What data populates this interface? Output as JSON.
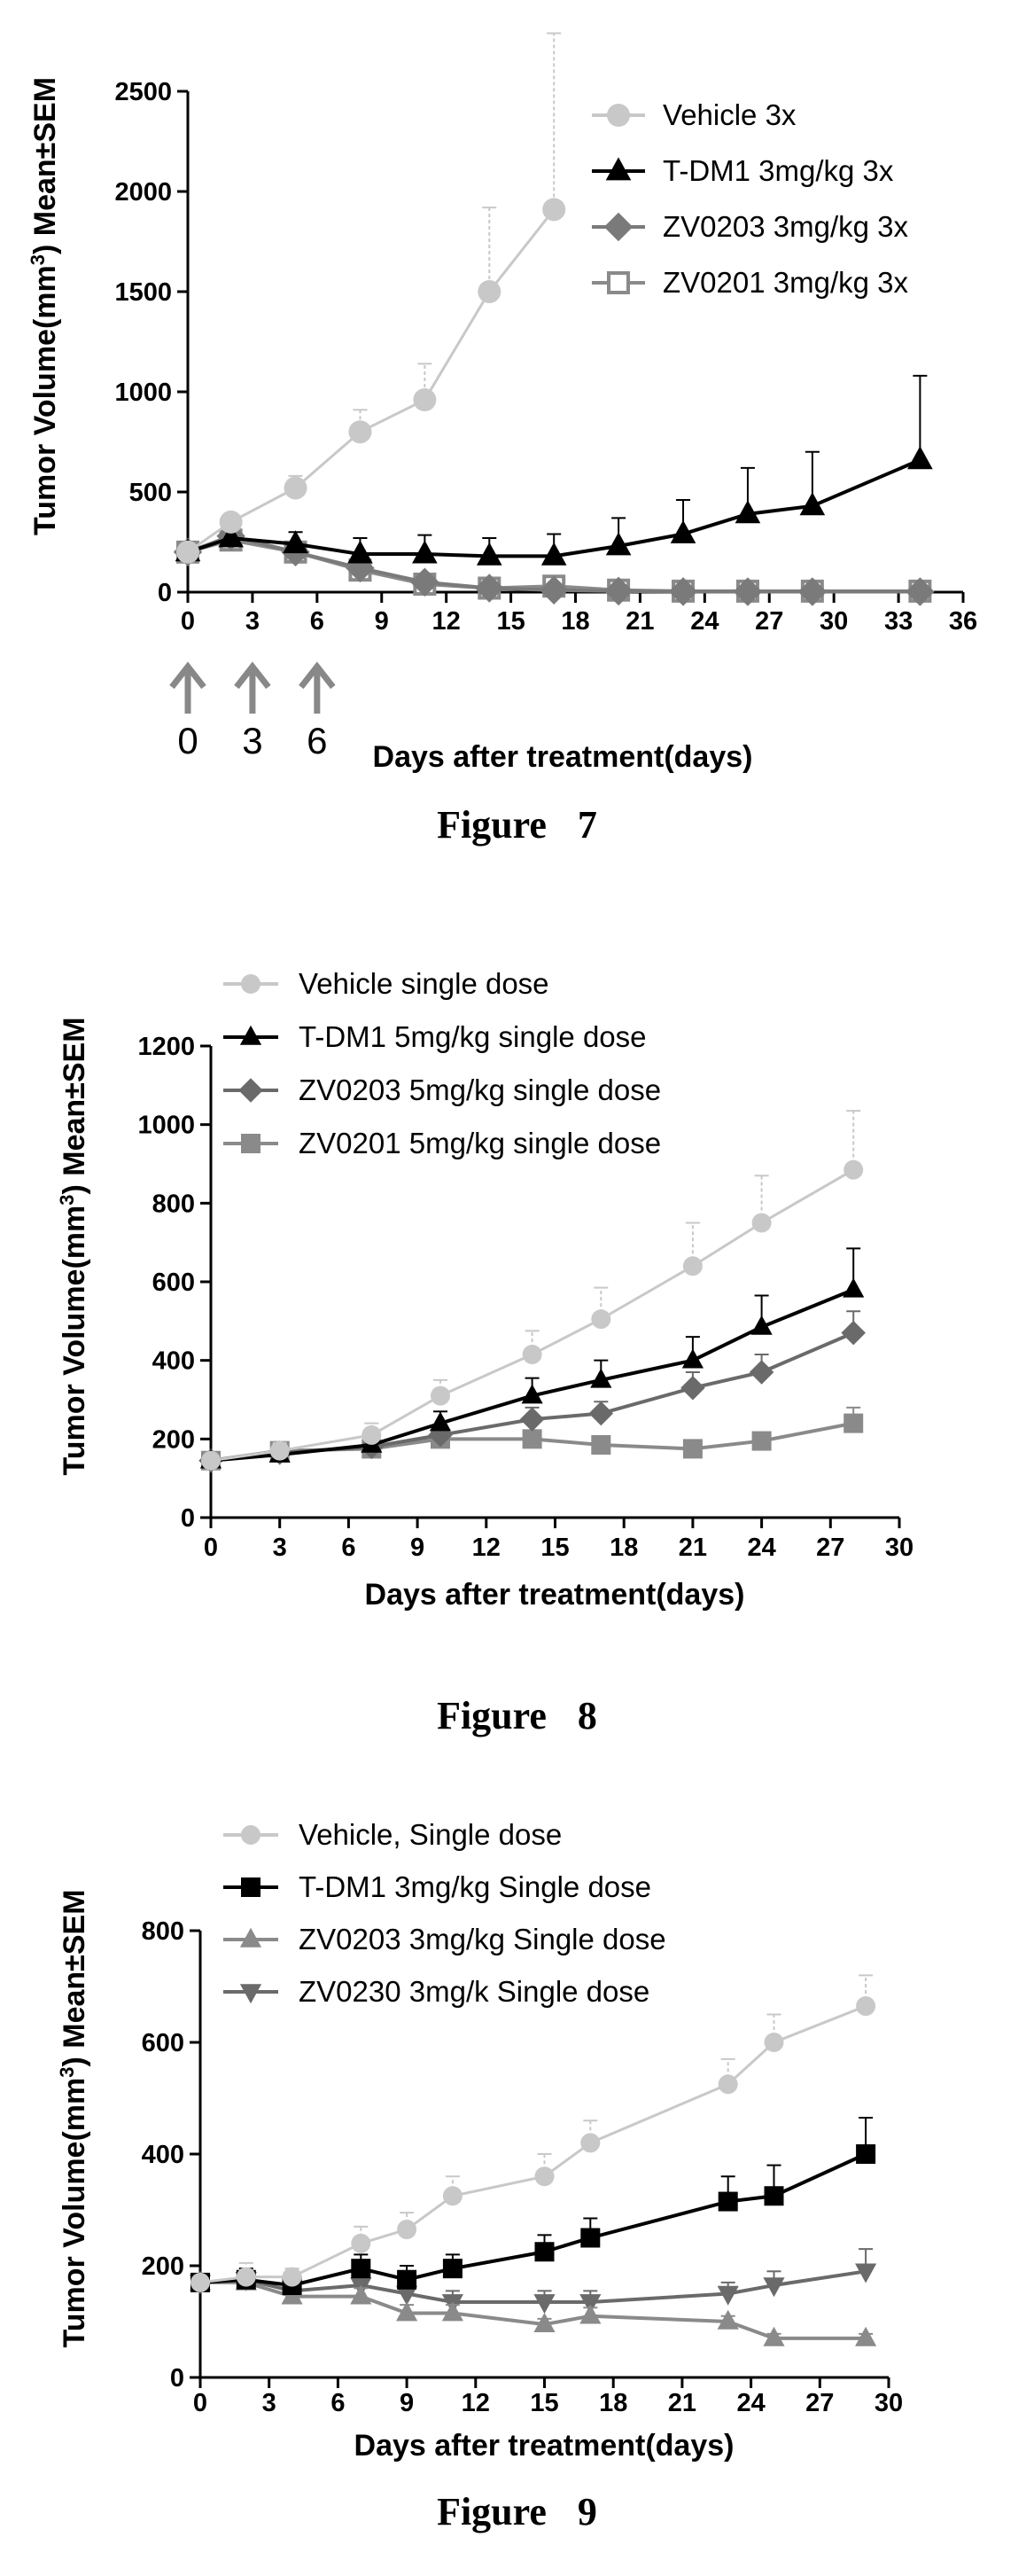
{
  "figures": [
    {
      "caption": "Figure 7",
      "chart_data": {
        "type": "line",
        "ylabel": "Tumor Volume(mm3) Mean±SEM",
        "xlabel": "Days after treatment(days)",
        "xlim": [
          0,
          36
        ],
        "ylim": [
          0,
          2500
        ],
        "xticks": [
          0,
          3,
          6,
          9,
          12,
          15,
          18,
          21,
          24,
          27,
          30,
          33,
          36
        ],
        "yticks": [
          0,
          500,
          1000,
          1500,
          2000,
          2500
        ],
        "legend": "top-right",
        "dose_days": [
          0,
          3,
          6
        ],
        "series": [
          {
            "name": "Vehicle 3x",
            "color": "#c8c8c8",
            "marker": "circle",
            "x": [
              0,
              2,
              5,
              8,
              11,
              14,
              17
            ],
            "y": [
              200,
              350,
              520,
              800,
              960,
              1500,
              1910
            ],
            "err": [
              0,
              40,
              60,
              110,
              180,
              420,
              880
            ]
          },
          {
            "name": "T-DM1 3mg/kg 3x",
            "color": "#000000",
            "marker": "triangle",
            "x": [
              0,
              2,
              5,
              8,
              11,
              14,
              17,
              20,
              23,
              26,
              29,
              34
            ],
            "y": [
              200,
              270,
              240,
              190,
              190,
              180,
              180,
              230,
              290,
              390,
              430,
              660
            ],
            "err": [
              0,
              50,
              60,
              80,
              95,
              90,
              110,
              140,
              170,
              230,
              270,
              420
            ]
          },
          {
            "name": "ZV0203 3mg/kg 3x",
            "color": "#7a7a7a",
            "marker": "diamond",
            "x": [
              0,
              2,
              5,
              8,
              11,
              14,
              17,
              20,
              23,
              26,
              29,
              34
            ],
            "y": [
              200,
              280,
              200,
              120,
              50,
              20,
              10,
              5,
              3,
              2,
              2,
              2
            ],
            "err": [
              0,
              30,
              30,
              20,
              15,
              10,
              5,
              3,
              0,
              0,
              0,
              0
            ]
          },
          {
            "name": "ZV0201 3mg/kg 3x",
            "color": "#8a8a8a",
            "marker": "square-open",
            "x": [
              0,
              2,
              5,
              8,
              11,
              14,
              17,
              20,
              23,
              26,
              29,
              34
            ],
            "y": [
              200,
              260,
              200,
              110,
              40,
              20,
              30,
              10,
              5,
              5,
              5,
              5
            ],
            "err": [
              0,
              30,
              30,
              20,
              15,
              10,
              10,
              5,
              0,
              0,
              0,
              0
            ]
          }
        ]
      }
    },
    {
      "caption": "Figure 8",
      "chart_data": {
        "type": "line",
        "ylabel": "Tumor Volume(mm3) Mean±SEM",
        "xlabel": "Days after treatment(days)",
        "xlim": [
          0,
          30
        ],
        "ylim": [
          0,
          1200
        ],
        "xticks": [
          0,
          3,
          6,
          9,
          12,
          15,
          18,
          21,
          24,
          27,
          30
        ],
        "yticks": [
          0,
          200,
          400,
          600,
          800,
          1000,
          1200
        ],
        "legend": "top-left",
        "series": [
          {
            "name": "Vehicle single dose",
            "color": "#c8c8c8",
            "marker": "circle",
            "x": [
              0,
              3,
              7,
              10,
              14,
              17,
              21,
              24,
              28
            ],
            "y": [
              145,
              170,
              210,
              310,
              415,
              505,
              640,
              750,
              885
            ],
            "err": [
              0,
              20,
              30,
              40,
              60,
              80,
              110,
              120,
              150
            ]
          },
          {
            "name": "T-DM1 5mg/kg single dose",
            "color": "#000000",
            "marker": "triangle",
            "x": [
              0,
              3,
              7,
              10,
              14,
              17,
              21,
              24,
              28
            ],
            "y": [
              145,
              160,
              185,
              240,
              310,
              350,
              400,
              485,
              580
            ],
            "err": [
              0,
              20,
              20,
              30,
              45,
              50,
              60,
              80,
              105
            ]
          },
          {
            "name": "ZV0203 5mg/kg single dose",
            "color": "#6a6a6a",
            "marker": "diamond",
            "x": [
              0,
              3,
              7,
              10,
              14,
              17,
              21,
              24,
              28
            ],
            "y": [
              145,
              165,
              180,
              210,
              250,
              265,
              330,
              370,
              470
            ],
            "err": [
              0,
              15,
              20,
              25,
              30,
              30,
              40,
              45,
              55
            ]
          },
          {
            "name": "ZV0201 5mg/kg single dose",
            "color": "#8a8a8a",
            "marker": "square",
            "x": [
              0,
              3,
              7,
              10,
              14,
              17,
              21,
              24,
              28
            ],
            "y": [
              145,
              170,
              175,
              200,
              200,
              185,
              175,
              195,
              240
            ],
            "err": [
              0,
              15,
              15,
              20,
              20,
              20,
              15,
              20,
              40
            ]
          }
        ]
      }
    },
    {
      "caption": "Figure 9",
      "chart_data": {
        "type": "line",
        "ylabel": "Tumor Volume(mm3) Mean±SEM",
        "xlabel": "Days after treatment(days)",
        "xlim": [
          0,
          30
        ],
        "ylim": [
          0,
          800
        ],
        "xticks": [
          0,
          3,
          6,
          9,
          12,
          15,
          18,
          21,
          24,
          27,
          30
        ],
        "yticks": [
          0,
          200,
          400,
          600,
          800
        ],
        "legend": "top-left",
        "series": [
          {
            "name": "Vehicle, Single dose",
            "color": "#c8c8c8",
            "marker": "circle",
            "x": [
              0,
              2,
              4,
              7,
              9,
              11,
              15,
              17,
              23,
              25,
              29
            ],
            "y": [
              170,
              180,
              180,
              240,
              265,
              325,
              360,
              420,
              525,
              600,
              665
            ],
            "err": [
              0,
              25,
              15,
              30,
              30,
              35,
              40,
              40,
              45,
              50,
              55
            ]
          },
          {
            "name": "T-DM1 3mg/kg Single dose",
            "color": "#000000",
            "marker": "square",
            "x": [
              0,
              2,
              4,
              7,
              9,
              11,
              15,
              17,
              23,
              25,
              29
            ],
            "y": [
              170,
              175,
              165,
              195,
              175,
              195,
              225,
              250,
              315,
              325,
              400
            ],
            "err": [
              0,
              20,
              15,
              25,
              25,
              25,
              30,
              35,
              45,
              55,
              65
            ]
          },
          {
            "name": "ZV0203 3mg/kg Single dose",
            "color": "#8a8a8a",
            "marker": "triangle",
            "x": [
              0,
              2,
              4,
              7,
              9,
              11,
              15,
              17,
              23,
              25,
              29
            ],
            "y": [
              170,
              170,
              145,
              145,
              115,
              115,
              95,
              110,
              100,
              70,
              70
            ],
            "err": [
              0,
              15,
              10,
              15,
              15,
              15,
              10,
              15,
              10,
              8,
              8
            ]
          },
          {
            "name": "ZV0230 3mg/k Single dose",
            "color": "#6a6a6a",
            "marker": "triangle-down",
            "x": [
              0,
              2,
              4,
              7,
              9,
              11,
              15,
              17,
              23,
              25,
              29
            ],
            "y": [
              170,
              175,
              155,
              165,
              150,
              135,
              135,
              135,
              150,
              165,
              190
            ],
            "err": [
              0,
              15,
              15,
              20,
              20,
              20,
              20,
              20,
              20,
              25,
              40
            ]
          }
        ]
      }
    }
  ]
}
